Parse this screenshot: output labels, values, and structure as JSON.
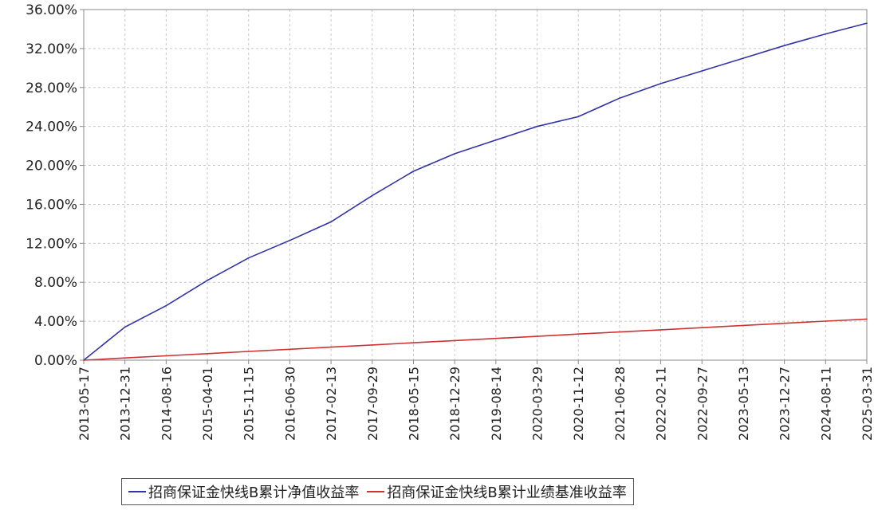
{
  "chart_data": {
    "type": "line",
    "x": [
      "2013-05-17",
      "2013-12-31",
      "2014-08-16",
      "2015-04-01",
      "2015-11-15",
      "2016-06-30",
      "2017-02-13",
      "2017-09-29",
      "2018-05-15",
      "2018-12-29",
      "2019-08-14",
      "2020-03-29",
      "2020-11-12",
      "2021-06-28",
      "2022-02-11",
      "2022-09-27",
      "2023-05-13",
      "2023-12-27",
      "2024-08-11",
      "2025-03-31"
    ],
    "xticks": [
      "2013-05-17",
      "2013-12-31",
      "2014-08-16",
      "2015-04-01",
      "2015-11-15",
      "2016-06-30",
      "2017-02-13",
      "2017-09-29",
      "2018-05-15",
      "2018-12-29",
      "2019-08-14",
      "2020-03-29",
      "2020-11-12",
      "2021-06-28",
      "2022-02-11",
      "2022-09-27",
      "2023-05-13",
      "2023-12-27",
      "2024-08-11",
      "2025-03-31"
    ],
    "yticks": [
      "0.00%",
      "4.00%",
      "8.00%",
      "12.00%",
      "16.00%",
      "20.00%",
      "24.00%",
      "28.00%",
      "32.00%",
      "36.00%"
    ],
    "ylim": [
      0,
      36
    ],
    "y_unit": "%",
    "grid": true,
    "legend_position": "bottom",
    "series": [
      {
        "name": "招商保证金快线B累计净值收益率",
        "color": "#3333aa",
        "values": [
          0.0,
          3.4,
          5.6,
          8.2,
          10.5,
          12.3,
          14.2,
          16.9,
          19.4,
          21.2,
          22.6,
          24.0,
          25.0,
          26.9,
          28.4,
          29.7,
          31.0,
          32.3,
          33.5,
          34.6
        ]
      },
      {
        "name": "招商保证金快线B累计业绩基准收益率",
        "color": "#cc3333",
        "values": [
          0.0,
          0.23,
          0.45,
          0.67,
          0.9,
          1.12,
          1.34,
          1.56,
          1.79,
          2.01,
          2.23,
          2.45,
          2.68,
          2.9,
          3.12,
          3.34,
          3.57,
          3.79,
          4.01,
          4.22
        ]
      }
    ]
  }
}
